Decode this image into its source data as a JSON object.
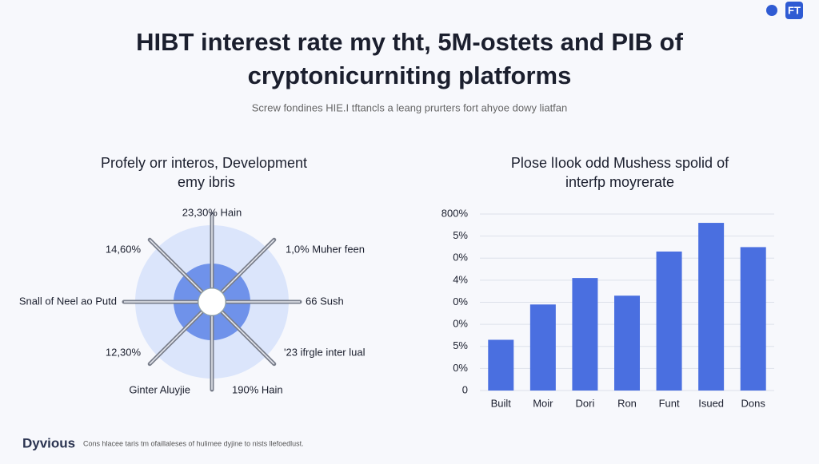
{
  "header": {
    "title_line1": "HIBT interest rate my tht, 5M-ostets and PIB of",
    "title_line2": "cryptonicurniting platforms",
    "subtitle": "Screw fondines HIE.I tftancls a leang prurters fort ahyoe dowy liatfan",
    "logo": "FT"
  },
  "chart_data": [
    {
      "type": "radial",
      "title_line1": "Profely orr interos, Development",
      "title_line2": "emy ibris",
      "labels": [
        "23,30% Hain",
        "1,0% Muher feen",
        "66 Sush",
        "'23 ifrgle inter lual",
        "190% Hain",
        "Ginter Aluyjie",
        "12,30%",
        "Snall of Neel ao Putd",
        "14,60%"
      ]
    },
    {
      "type": "bar",
      "title_line1": "Plose lIook odd Mushess spolid of",
      "title_line2": "interfp moyrerate",
      "categories": [
        "Built",
        "Moir",
        "Dori",
        "Ron",
        "Funt",
        "Isued",
        "Dons"
      ],
      "values": [
        2.3,
        3.9,
        5.1,
        4.3,
        6.3,
        7.6,
        6.5
      ],
      "color": "#4a6fe0",
      "ylim": [
        0,
        8
      ],
      "yticks": [
        0,
        {
          "value": 1,
          "label": "0%"
        },
        {
          "value": 2,
          "label": "5%"
        },
        {
          "value": 3,
          "label": "0%"
        },
        {
          "value": 4,
          "label": "0%"
        },
        {
          "value": 5,
          "label": "4%"
        },
        {
          "value": 6,
          "label": "0%"
        },
        {
          "value": 7,
          "label": "5%"
        },
        {
          "value": 8,
          "label": "800%"
        }
      ],
      "grid": true
    }
  ],
  "footer": {
    "brand": "Dyvious",
    "note": "Cons hlacee taris tm ofaillaleses of hulimee dyjine to nists llefoedlust."
  }
}
